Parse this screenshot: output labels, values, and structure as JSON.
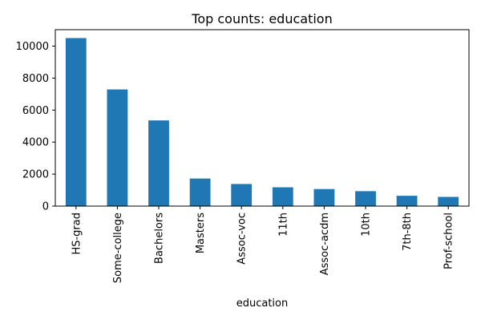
{
  "chart_data": {
    "type": "bar",
    "title": "Top counts: education",
    "xlabel": "education",
    "ylabel": "",
    "categories": [
      "HS-grad",
      "Some-college",
      "Bachelors",
      "Masters",
      "Assoc-voc",
      "11th",
      "Assoc-acdm",
      "10th",
      "7th-8th",
      "Prof-school"
    ],
    "values": [
      10501,
      7291,
      5355,
      1723,
      1382,
      1175,
      1067,
      933,
      646,
      576
    ],
    "ylim": [
      0,
      11026
    ],
    "yticks": [
      0,
      2000,
      4000,
      6000,
      8000,
      10000
    ],
    "grid": false,
    "legend": "none",
    "bar_color": "#1f77b4"
  }
}
